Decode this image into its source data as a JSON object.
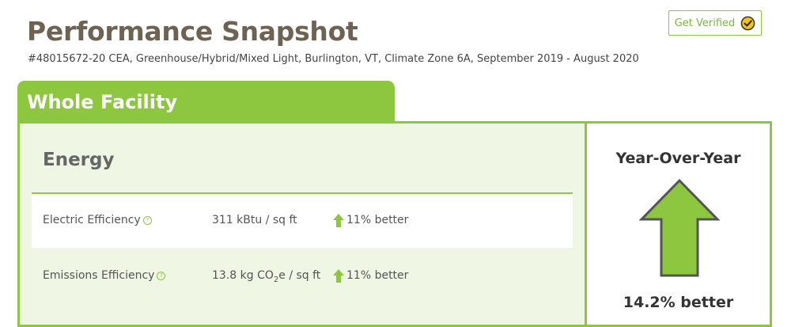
{
  "header": {
    "title": "Performance Snapshot",
    "subtitle": "#48015672-20 CEA, Greenhouse/Hybrid/Mixed Light, Burlington, VT, Climate Zone 6A, September 2019 - August 2020",
    "verify_label": "Get Verified",
    "verify_icon": "check-circle-icon"
  },
  "tab": {
    "label": "Whole Facility"
  },
  "energy": {
    "title": "Energy",
    "help_symbol": "?",
    "metrics": [
      {
        "label": "Electric Efficiency",
        "value": "311 kBtu / sq ft",
        "change": "11% better",
        "direction": "up"
      },
      {
        "label": "Emissions Efficiency",
        "value_prefix": "13.8 kg CO",
        "value_sub": "2",
        "value_suffix": "e / sq ft",
        "change": "11% better",
        "direction": "up"
      }
    ]
  },
  "year_over_year": {
    "title": "Year-Over-Year",
    "value": "14.2% better",
    "direction": "up"
  },
  "colors": {
    "accent": "#8dc63f",
    "title": "#6e6352",
    "panel_bg": "#eff6e4",
    "check_fill": "#f2c41b"
  }
}
